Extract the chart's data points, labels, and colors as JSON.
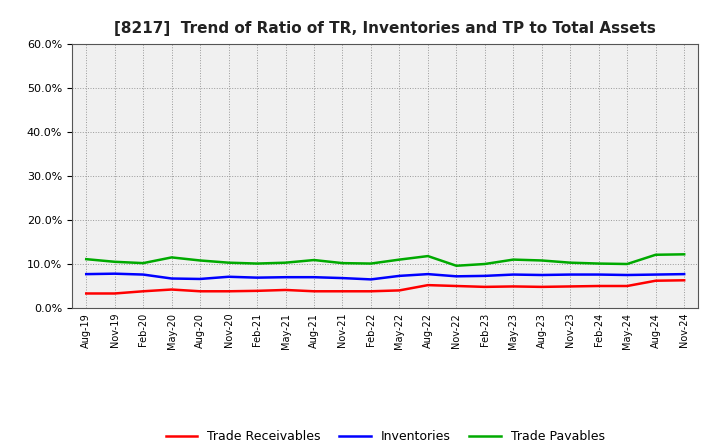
{
  "title": "[8217]  Trend of Ratio of TR, Inventories and TP to Total Assets",
  "x_labels": [
    "Aug-19",
    "Nov-19",
    "Feb-20",
    "May-20",
    "Aug-20",
    "Nov-20",
    "Feb-21",
    "May-21",
    "Aug-21",
    "Nov-21",
    "Feb-22",
    "May-22",
    "Aug-22",
    "Nov-22",
    "Feb-23",
    "May-23",
    "Aug-23",
    "Nov-23",
    "Feb-24",
    "May-24",
    "Aug-24",
    "Nov-24"
  ],
  "trade_receivables": [
    0.033,
    0.033,
    0.038,
    0.042,
    0.038,
    0.038,
    0.039,
    0.041,
    0.038,
    0.038,
    0.038,
    0.04,
    0.052,
    0.05,
    0.048,
    0.049,
    0.048,
    0.049,
    0.05,
    0.05,
    0.062,
    0.063
  ],
  "inventories": [
    0.077,
    0.078,
    0.076,
    0.067,
    0.066,
    0.071,
    0.069,
    0.07,
    0.07,
    0.068,
    0.065,
    0.073,
    0.077,
    0.072,
    0.073,
    0.076,
    0.075,
    0.076,
    0.076,
    0.075,
    0.076,
    0.077
  ],
  "trade_payables": [
    0.111,
    0.105,
    0.102,
    0.115,
    0.108,
    0.103,
    0.101,
    0.103,
    0.109,
    0.102,
    0.101,
    0.11,
    0.118,
    0.096,
    0.1,
    0.11,
    0.108,
    0.103,
    0.101,
    0.1,
    0.121,
    0.122
  ],
  "color_tr": "#ff0000",
  "color_inv": "#0000ff",
  "color_tp": "#00aa00",
  "ylim": [
    0.0,
    0.6
  ],
  "yticks": [
    0.0,
    0.1,
    0.2,
    0.3,
    0.4,
    0.5,
    0.6
  ],
  "background_color": "#ffffff",
  "plot_area_color": "#f0f0f0",
  "grid_color": "#999999",
  "legend_labels": [
    "Trade Receivables",
    "Inventories",
    "Trade Payables"
  ]
}
